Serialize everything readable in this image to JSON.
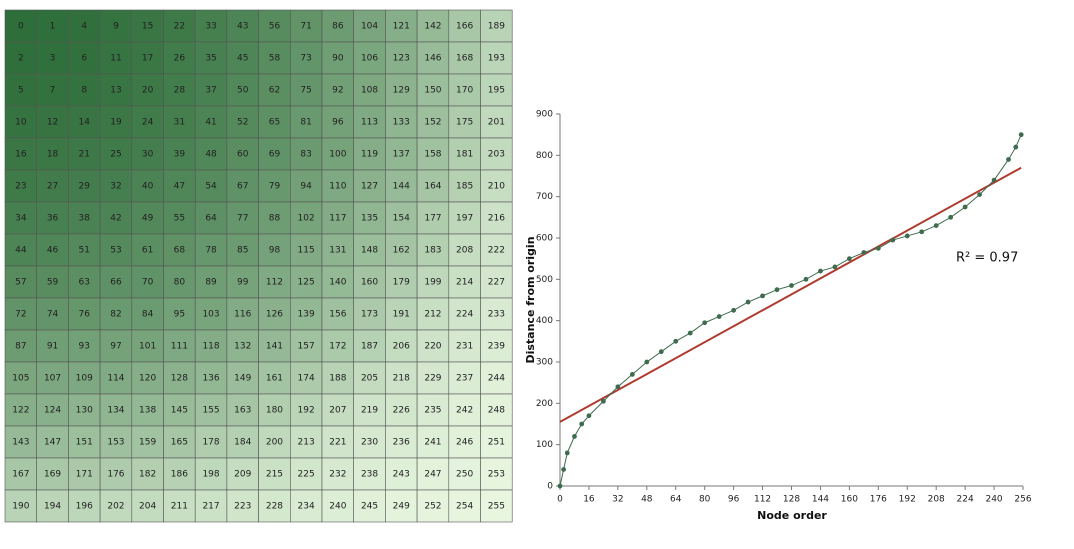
{
  "grid": {
    "rows": [
      [
        0,
        1,
        4,
        9,
        15,
        22,
        33,
        43,
        56,
        71,
        86,
        104,
        121,
        142,
        166,
        189
      ],
      [
        2,
        3,
        6,
        11,
        17,
        26,
        35,
        45,
        58,
        73,
        90,
        106,
        123,
        146,
        168,
        193
      ],
      [
        5,
        7,
        8,
        13,
        20,
        28,
        37,
        50,
        62,
        75,
        92,
        108,
        129,
        150,
        170,
        195
      ],
      [
        10,
        12,
        14,
        19,
        24,
        31,
        41,
        52,
        65,
        81,
        96,
        113,
        133,
        152,
        175,
        201
      ],
      [
        16,
        18,
        21,
        25,
        30,
        39,
        48,
        60,
        69,
        83,
        100,
        119,
        137,
        158,
        181,
        203
      ],
      [
        23,
        27,
        29,
        32,
        40,
        47,
        54,
        67,
        79,
        94,
        110,
        127,
        144,
        164,
        185,
        210
      ],
      [
        34,
        36,
        38,
        42,
        49,
        55,
        64,
        77,
        88,
        102,
        117,
        135,
        154,
        177,
        197,
        216
      ],
      [
        44,
        46,
        51,
        53,
        61,
        68,
        78,
        85,
        98,
        115,
        131,
        148,
        162,
        183,
        208,
        222
      ],
      [
        57,
        59,
        63,
        66,
        70,
        80,
        89,
        99,
        112,
        125,
        140,
        160,
        179,
        199,
        214,
        227
      ],
      [
        72,
        74,
        76,
        82,
        84,
        95,
        103,
        116,
        126,
        139,
        156,
        173,
        191,
        212,
        224,
        233
      ],
      [
        87,
        91,
        93,
        97,
        101,
        111,
        118,
        132,
        141,
        157,
        172,
        187,
        206,
        220,
        231,
        239
      ],
      [
        105,
        107,
        109,
        114,
        120,
        128,
        136,
        149,
        161,
        174,
        188,
        205,
        218,
        229,
        237,
        244
      ],
      [
        122,
        124,
        130,
        134,
        138,
        145,
        155,
        163,
        180,
        192,
        207,
        219,
        226,
        235,
        242,
        248
      ],
      [
        143,
        147,
        151,
        153,
        159,
        165,
        178,
        184,
        200,
        213,
        221,
        230,
        236,
        241,
        246,
        251
      ],
      [
        167,
        169,
        171,
        176,
        182,
        186,
        198,
        209,
        215,
        225,
        232,
        238,
        243,
        247,
        250,
        253
      ],
      [
        190,
        194,
        196,
        202,
        204,
        211,
        217,
        223,
        228,
        234,
        240,
        245,
        249,
        252,
        254,
        255
      ]
    ]
  },
  "chart_data": {
    "type": "scatter",
    "xlabel": "Node order",
    "ylabel": "Distance from origin",
    "annotation": "R² = 0.97",
    "x": [
      0,
      2,
      4,
      8,
      12,
      16,
      24,
      32,
      40,
      48,
      56,
      64,
      72,
      80,
      88,
      96,
      104,
      112,
      120,
      128,
      136,
      144,
      152,
      160,
      168,
      176,
      184,
      192,
      200,
      208,
      216,
      224,
      232,
      240,
      248,
      252,
      255
    ],
    "series": [
      {
        "color": "#3f6b4e",
        "values": [
          0,
          40,
          80,
          120,
          150,
          170,
          205,
          240,
          270,
          300,
          325,
          350,
          370,
          395,
          410,
          425,
          445,
          460,
          475,
          485,
          500,
          520,
          530,
          550,
          565,
          575,
          595,
          605,
          615,
          630,
          650,
          675,
          705,
          740,
          790,
          820,
          850
        ]
      }
    ],
    "trendline": {
      "color": "#b03a2e",
      "x": [
        0,
        255
      ],
      "values": [
        155,
        770
      ]
    },
    "xlim": [
      0,
      256
    ],
    "ylim": [
      0,
      900
    ],
    "xticks": [
      0,
      16,
      32,
      48,
      64,
      80,
      96,
      112,
      128,
      144,
      160,
      176,
      192,
      208,
      224,
      240,
      256
    ],
    "yticks": [
      0,
      100,
      200,
      300,
      400,
      500,
      600,
      700,
      800,
      900
    ]
  }
}
